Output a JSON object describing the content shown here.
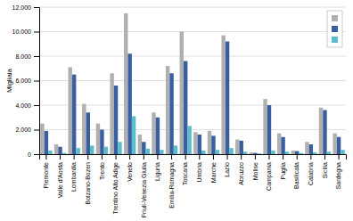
{
  "chart_data": {
    "type": "bar",
    "ylabel": "Migliaia",
    "categories": [
      "Piemonte",
      "Valle d'Aosta",
      "Lombardia",
      "Bolzano-Bozen",
      "Trento",
      "Trentino Alto Adige",
      "Veneto",
      "Friuli-Venezia Giulia",
      "Liguria",
      "Emilia-Romagna",
      "Toscana",
      "Umbria",
      "Marche",
      "Lazio",
      "Abruzzo",
      "Molise",
      "Campania",
      "Puglia",
      "Basilicata",
      "Calabria",
      "Sicilia",
      "Sardegna"
    ],
    "series": [
      {
        "color": "#b0b0b0",
        "values": [
          2500,
          800,
          7100,
          4100,
          2500,
          6600,
          11500,
          1600,
          3400,
          7200,
          10000,
          1800,
          1900,
          9700,
          1200,
          150,
          4500,
          1700,
          300,
          1000,
          3800,
          1700
        ]
      },
      {
        "color": "#3a5fa0",
        "values": [
          1900,
          600,
          6500,
          3400,
          2000,
          5600,
          8200,
          1000,
          3000,
          6600,
          7600,
          1600,
          1500,
          9200,
          1100,
          100,
          4000,
          1400,
          250,
          800,
          3600,
          1400
        ]
      },
      {
        "color": "#5bbccc",
        "values": [
          300,
          100,
          500,
          700,
          600,
          1000,
          3100,
          450,
          350,
          700,
          2300,
          300,
          350,
          500,
          200,
          50,
          300,
          200,
          100,
          150,
          200,
          350
        ]
      }
    ],
    "ylim": [
      0,
      12000
    ],
    "yticks": [
      0,
      {
        "value": 2000,
        "label": "2.000"
      },
      {
        "value": 4000,
        "label": "4.000"
      },
      {
        "value": 6000,
        "label": "6.000"
      },
      {
        "value": 8000,
        "label": "8.000"
      },
      {
        "value": 10000,
        "label": "10.000"
      },
      {
        "value": 12000,
        "label": "12.000"
      }
    ],
    "grid": true,
    "legend": "upper right"
  }
}
